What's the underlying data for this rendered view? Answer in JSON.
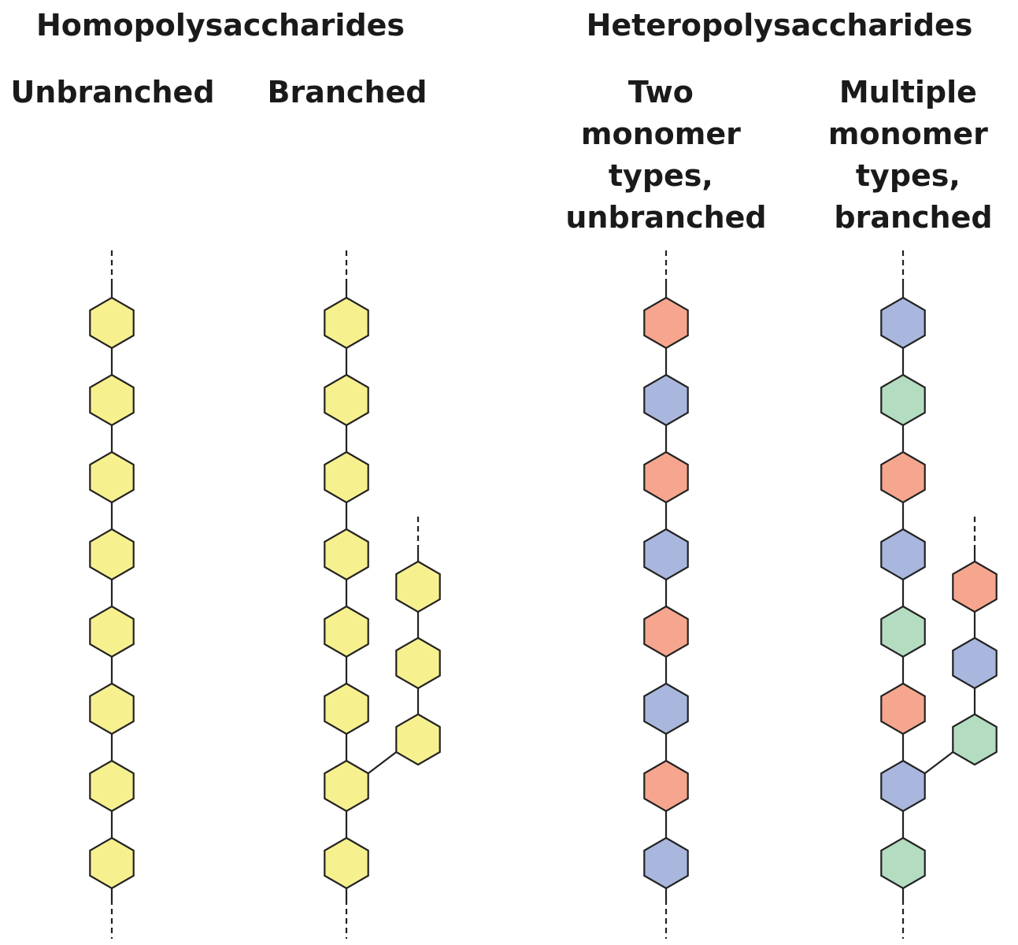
{
  "groups": {
    "homo": "Homopolysaccharides",
    "hetero": "Heteropolysaccharides"
  },
  "columns": {
    "unbranched": [
      "Unbranched"
    ],
    "branched": [
      "Branched"
    ],
    "two_types": [
      "Two",
      "monomer",
      "types,",
      "unbranched"
    ],
    "multiple_types": [
      "Multiple",
      "monomer",
      "types,",
      "branched"
    ]
  },
  "colors": {
    "yellow": "#f7f08f",
    "red": "#f6a68e",
    "blue": "#a9b7de",
    "green": "#b4dcc0"
  },
  "chains": {
    "unbranched": {
      "main": [
        "yellow",
        "yellow",
        "yellow",
        "yellow",
        "yellow",
        "yellow",
        "yellow",
        "yellow"
      ]
    },
    "branched": {
      "main": [
        "yellow",
        "yellow",
        "yellow",
        "yellow",
        "yellow",
        "yellow",
        "yellow",
        "yellow"
      ],
      "branch_at": 6,
      "branch": [
        "yellow",
        "yellow",
        "yellow"
      ]
    },
    "two_types": {
      "main": [
        "red",
        "blue",
        "red",
        "blue",
        "red",
        "blue",
        "red",
        "blue"
      ]
    },
    "multiple_types": {
      "main": [
        "blue",
        "green",
        "red",
        "blue",
        "green",
        "red",
        "blue",
        "green"
      ],
      "branch_at": 6,
      "branch": [
        "red",
        "blue",
        "green"
      ]
    }
  }
}
